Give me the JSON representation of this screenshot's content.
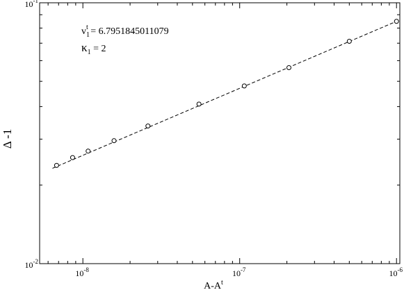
{
  "chart_data": {
    "type": "scatter",
    "title": "",
    "xlabel": "A-A",
    "xlabel_sup": "t",
    "ylabel": "Δ -1",
    "xscale": "log",
    "yscale": "log",
    "xlim": [
      5.3e-09,
      1.05e-06
    ],
    "ylim": [
      0.01,
      0.1
    ],
    "x_ticks": [
      {
        "value": 1e-08,
        "base": "10",
        "exp": "-8"
      },
      {
        "value": 1e-07,
        "base": "10",
        "exp": "-7"
      },
      {
        "value": 1e-06,
        "base": "10",
        "exp": "-6"
      }
    ],
    "y_ticks": [
      {
        "value": 0.01,
        "base": "10",
        "exp": "-2"
      },
      {
        "value": 0.1,
        "base": "10",
        "exp": "-1"
      }
    ],
    "series": [
      {
        "marker": "open-circle",
        "x": [
          6.8e-09,
          8.6e-09,
          1.08e-08,
          1.58e-08,
          2.6e-08,
          5.5e-08,
          1.07e-07,
          2.06e-07,
          5e-07,
          1e-06
        ],
        "y": [
          0.0238,
          0.0255,
          0.027,
          0.0296,
          0.0337,
          0.0409,
          0.048,
          0.0564,
          0.0712,
          0.0849
        ]
      }
    ],
    "fit_line": {
      "style": "dashed",
      "x": [
        6.4e-09,
        1e-06
      ],
      "y": [
        0.0232,
        0.0849
      ]
    },
    "annotations": [
      {
        "var": "v",
        "sub": "1",
        "sup": "t",
        "text": " = 6.7951845011079"
      },
      {
        "var": "κ",
        "sub": "1",
        "sup": "",
        "text": " = 2"
      }
    ],
    "grid": false,
    "legend": "none"
  }
}
